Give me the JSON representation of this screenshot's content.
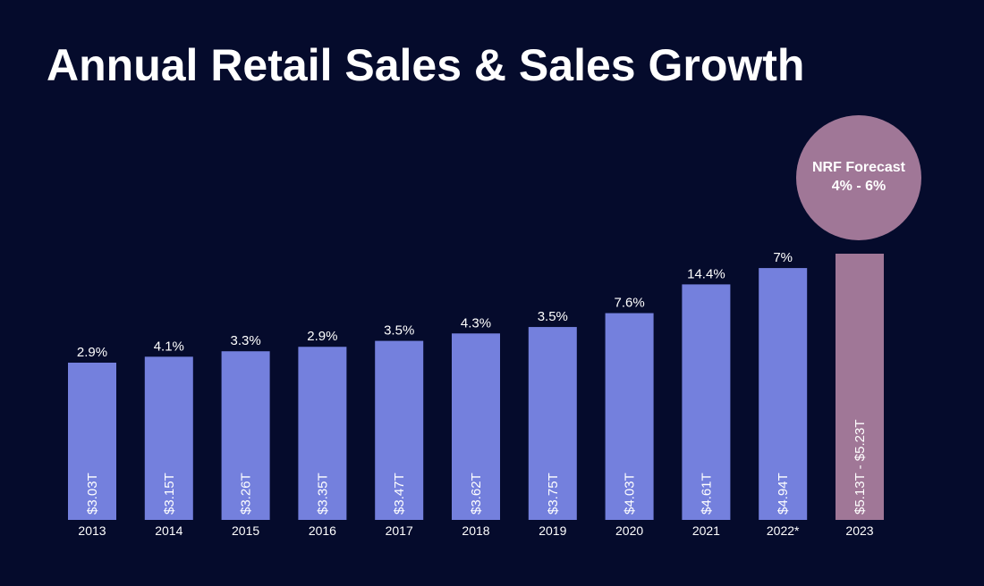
{
  "title": "Annual Retail Sales & Sales Growth",
  "forecast": {
    "label": "NRF Forecast",
    "range": "4% - 6%"
  },
  "colors": {
    "background": "#050b2c",
    "bar": "#7480dd",
    "forecast_bar": "#a07797",
    "text": "#ffffff"
  },
  "chart_data": {
    "type": "bar",
    "title": "Annual Retail Sales & Sales Growth",
    "categories": [
      "2013",
      "2014",
      "2015",
      "2016",
      "2017",
      "2018",
      "2019",
      "2020",
      "2021",
      "2022*",
      "2023"
    ],
    "values": [
      3.03,
      3.15,
      3.26,
      3.35,
      3.47,
      3.62,
      3.75,
      4.03,
      4.61,
      4.94,
      5.23
    ],
    "value_labels": [
      "$3.03T",
      "$3.15T",
      "$3.26T",
      "$3.35T",
      "$3.47T",
      "$3.62T",
      "$3.75T",
      "$4.03T",
      "$4.61T",
      "$4.94T",
      "$5.13T - $5.23T"
    ],
    "growth_labels": [
      "2.9%",
      "4.1%",
      "3.3%",
      "2.9%",
      "3.5%",
      "4.3%",
      "3.5%",
      "7.6%",
      "14.4%",
      "7%",
      ""
    ],
    "forecast_index": 10,
    "xlabel": "",
    "ylabel": "",
    "grid": false,
    "legend": "none"
  }
}
